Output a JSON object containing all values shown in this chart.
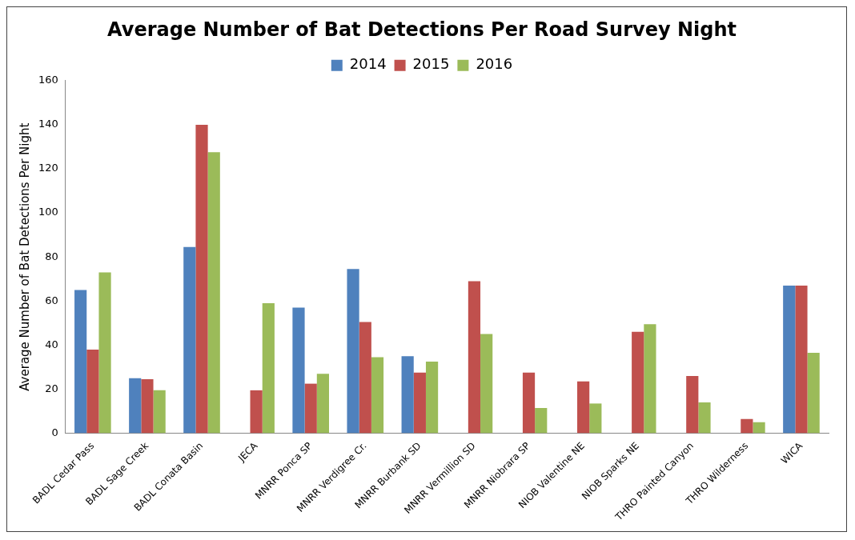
{
  "chart_data": {
    "type": "bar",
    "title": "Average Number of Bat Detections Per Road Survey Night",
    "ylabel": "Average Number of Bat Detections Per Night",
    "categories": [
      "BADL Cedar Pass",
      "BADL Sage Creek",
      "BADL Conata Basin",
      "JECA",
      "MNRR Ponca SP",
      "MNRR Verdigree Cr.",
      "MNRR Burbank SD",
      "MNRR Vermillion SD",
      "MNRR Niobrara SP",
      "NIOB Valentine NE",
      "NIOB Sparks NE",
      "THRO Painted Canyon",
      "THRO Wilderness",
      "WICA"
    ],
    "series": [
      {
        "name": "2014",
        "color": "#4f81bd",
        "values": [
          65,
          25,
          84.5,
          null,
          57,
          74.5,
          35,
          null,
          null,
          null,
          null,
          null,
          null,
          67
        ]
      },
      {
        "name": "2015",
        "color": "#c0504d",
        "values": [
          38,
          24.5,
          140,
          19.5,
          22.5,
          50.5,
          27.5,
          69,
          27.5,
          23.5,
          46,
          26,
          6.5,
          67
        ]
      },
      {
        "name": "2016",
        "color": "#9bbb59",
        "values": [
          73,
          19.5,
          127.5,
          59,
          27,
          34.5,
          32.5,
          45,
          11.5,
          13.5,
          49.5,
          14,
          5,
          36.5
        ]
      }
    ],
    "ylim": [
      0,
      160
    ],
    "yticks": [
      0,
      20,
      40,
      60,
      80,
      100,
      120,
      140,
      160
    ],
    "grid": false,
    "legend": "top"
  }
}
